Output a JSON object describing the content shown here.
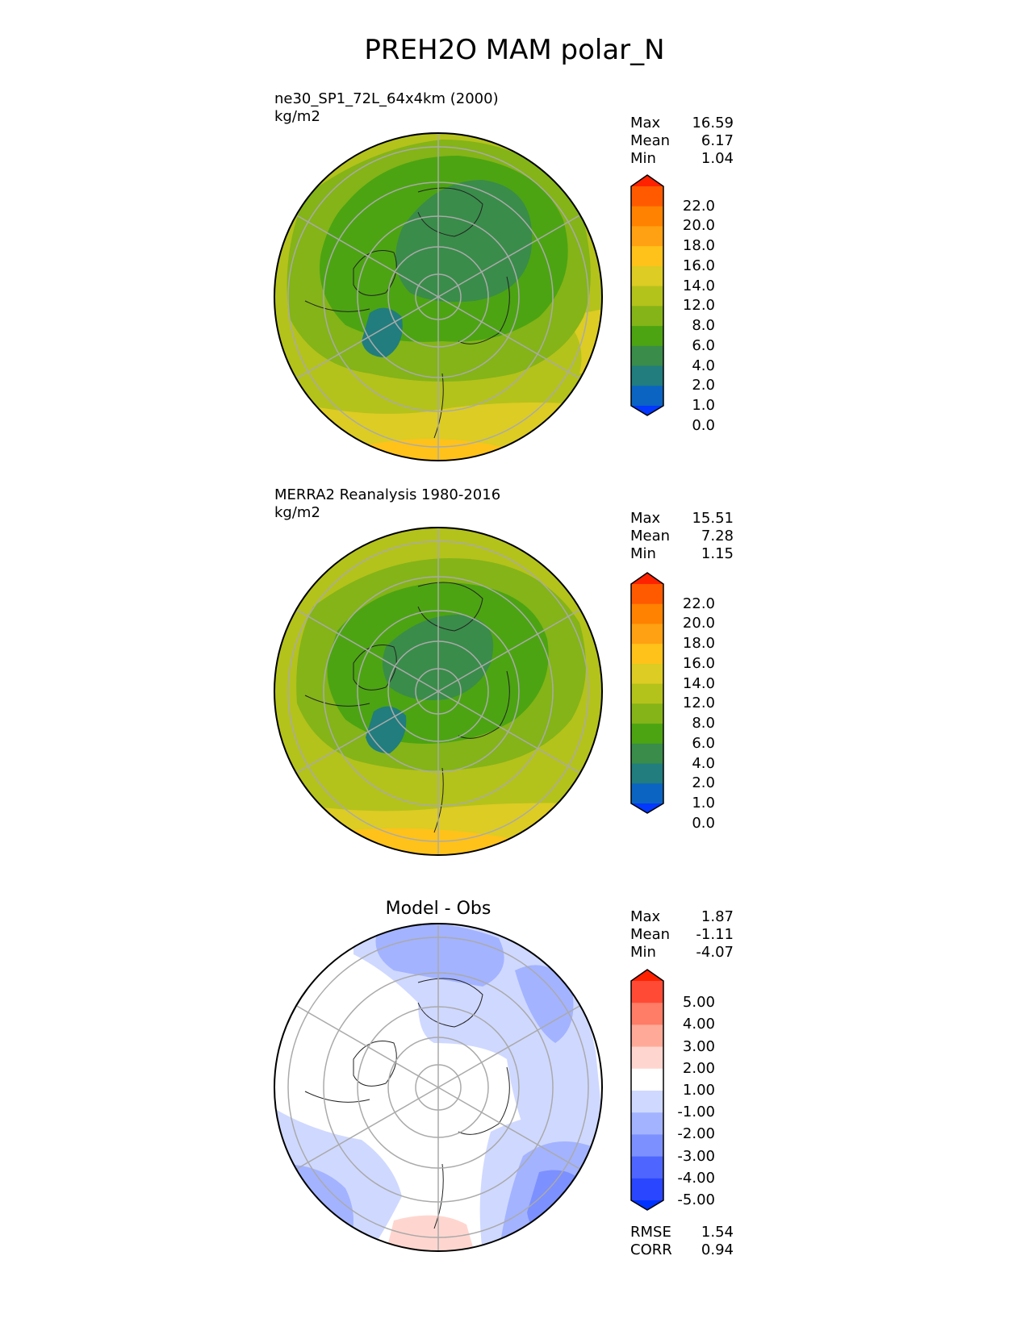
{
  "figure": {
    "title": "PREH2O MAM polar_N"
  },
  "panels": [
    {
      "id": "model",
      "title_lines": [
        "ne30_SP1_72L_64x4km (2000)",
        "kg/m2"
      ],
      "stats": [
        {
          "label": "Max",
          "value": "16.59"
        },
        {
          "label": "Mean",
          "value": "6.17"
        },
        {
          "label": "Min",
          "value": "1.04"
        }
      ],
      "colorbar_labels": [
        "22.0",
        "20.0",
        "18.0",
        "16.0",
        "14.0",
        "12.0",
        "8.0",
        "6.0",
        "4.0",
        "2.0",
        "1.0",
        "0.0"
      ],
      "colorbar_colors": [
        "#ff2200",
        "#ff5a00",
        "#ff8200",
        "#ffa112",
        "#ffc21a",
        "#dccc24",
        "#b4c21c",
        "#84b418",
        "#4ca412",
        "#3a8c4a",
        "#217d7e",
        "#0b64c2",
        "#0238ff"
      ]
    },
    {
      "id": "obs",
      "title_lines": [
        "MERRA2 Reanalysis 1980-2016",
        "kg/m2"
      ],
      "stats": [
        {
          "label": "Max",
          "value": "15.51"
        },
        {
          "label": "Mean",
          "value": "7.28"
        },
        {
          "label": "Min",
          "value": "1.15"
        }
      ],
      "colorbar_labels": [
        "22.0",
        "20.0",
        "18.0",
        "16.0",
        "14.0",
        "12.0",
        "8.0",
        "6.0",
        "4.0",
        "2.0",
        "1.0",
        "0.0"
      ],
      "colorbar_colors": [
        "#ff2200",
        "#ff5a00",
        "#ff8200",
        "#ffa112",
        "#ffc21a",
        "#dccc24",
        "#b4c21c",
        "#84b418",
        "#4ca412",
        "#3a8c4a",
        "#217d7e",
        "#0b64c2",
        "#0238ff"
      ]
    },
    {
      "id": "diff",
      "title_lines": [
        "Model - Obs"
      ],
      "stats": [
        {
          "label": "Max",
          "value": "1.87"
        },
        {
          "label": "Mean",
          "value": "-1.11"
        },
        {
          "label": "Min",
          "value": "-4.07"
        }
      ],
      "extra_stats": [
        {
          "label": "RMSE",
          "value": "1.54"
        },
        {
          "label": "CORR",
          "value": "0.94"
        }
      ],
      "colorbar_labels": [
        "5.00",
        "4.00",
        "3.00",
        "2.00",
        "1.00",
        "-1.00",
        "-2.00",
        "-3.00",
        "-4.00",
        "-5.00"
      ],
      "colorbar_colors": [
        "#ff2200",
        "#ff4b36",
        "#ff7c66",
        "#ffaa99",
        "#ffd6cf",
        "#ffffff",
        "#cfd8ff",
        "#a3b3ff",
        "#7c90ff",
        "#4e66ff",
        "#2a46ff",
        "#0032ff"
      ]
    }
  ],
  "chart_data": [
    {
      "type": "heatmap",
      "title": "ne30_SP1_72L_64x4km (2000)",
      "units": "kg/m2",
      "projection": "north polar stereographic",
      "levels": [
        0.0,
        1.0,
        2.0,
        4.0,
        6.0,
        8.0,
        12.0,
        14.0,
        16.0,
        18.0,
        20.0,
        22.0
      ],
      "extend": "both",
      "stats": {
        "max": 16.59,
        "mean": 6.17,
        "min": 1.04
      }
    },
    {
      "type": "heatmap",
      "title": "MERRA2 Reanalysis 1980-2016",
      "units": "kg/m2",
      "projection": "north polar stereographic",
      "levels": [
        0.0,
        1.0,
        2.0,
        4.0,
        6.0,
        8.0,
        12.0,
        14.0,
        16.0,
        18.0,
        20.0,
        22.0
      ],
      "extend": "both",
      "stats": {
        "max": 15.51,
        "mean": 7.28,
        "min": 1.15
      }
    },
    {
      "type": "heatmap",
      "title": "Model - Obs",
      "projection": "north polar stereographic",
      "levels": [
        -5.0,
        -4.0,
        -3.0,
        -2.0,
        -1.0,
        1.0,
        2.0,
        3.0,
        4.0,
        5.0
      ],
      "extend": "both",
      "stats": {
        "max": 1.87,
        "mean": -1.11,
        "min": -4.07,
        "rmse": 1.54,
        "corr": 0.94
      }
    }
  ]
}
